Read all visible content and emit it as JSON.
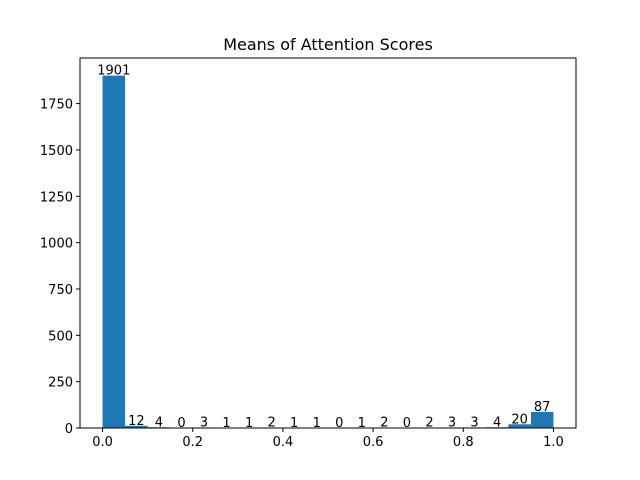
{
  "chart_data": {
    "type": "bar",
    "title": "Means of Attention Scores",
    "xlabel": "",
    "ylabel": "",
    "bin_edges": [
      0.0,
      0.05,
      0.1,
      0.15,
      0.2,
      0.25,
      0.3,
      0.35,
      0.4,
      0.45,
      0.5,
      0.55,
      0.6,
      0.65,
      0.7,
      0.75,
      0.8,
      0.85,
      0.9,
      0.95,
      1.0
    ],
    "values": [
      1901,
      12,
      4,
      0,
      3,
      1,
      1,
      2,
      1,
      1,
      0,
      1,
      2,
      0,
      2,
      3,
      3,
      4,
      20,
      87
    ],
    "xlim": [
      -0.05,
      1.05
    ],
    "ylim": [
      0,
      1996
    ],
    "xticks": [
      0.0,
      0.2,
      0.4,
      0.6,
      0.8,
      1.0
    ],
    "xtick_labels": [
      "0.0",
      "0.2",
      "0.4",
      "0.6",
      "0.8",
      "1.0"
    ],
    "yticks": [
      0,
      250,
      500,
      750,
      1000,
      1250,
      1500,
      1750
    ],
    "ytick_labels": [
      "0",
      "250",
      "500",
      "750",
      "1000",
      "1250",
      "1500",
      "1750"
    ],
    "bar_color": "#1f77b4",
    "grid": false,
    "legend": "none"
  }
}
